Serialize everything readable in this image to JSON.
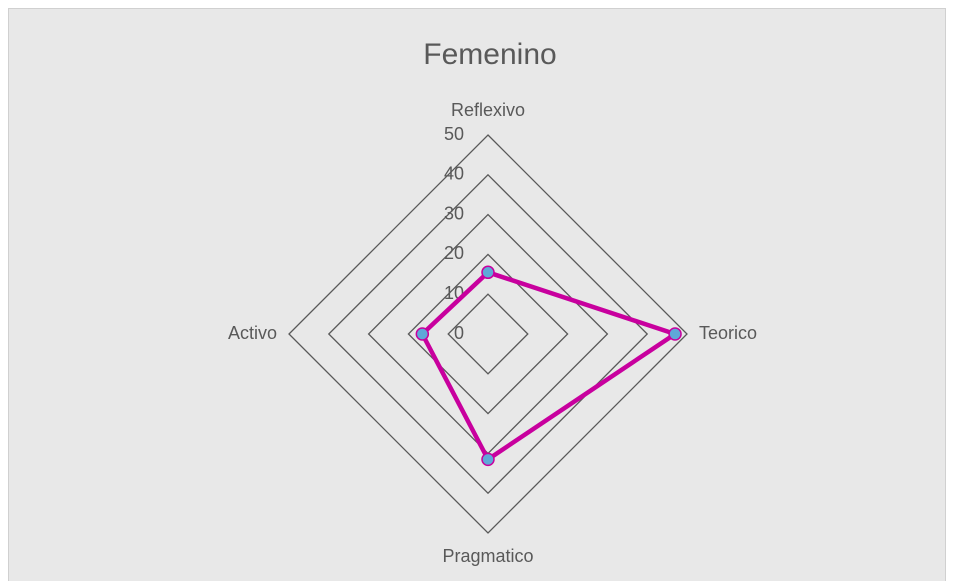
{
  "chart_data": {
    "type": "radar",
    "title": "Femenino",
    "categories": [
      "Reflexivo",
      "Teorico",
      "Pragmatico",
      "Activo"
    ],
    "series": [
      {
        "name": "Femenino",
        "color": "#c8009e",
        "marker_color": "#5fa8d8",
        "values": [
          15.5,
          47,
          31.5,
          16.5
        ]
      }
    ],
    "ylim": [
      0,
      50
    ],
    "yticks": [
      0,
      10,
      20,
      30,
      40,
      50
    ],
    "grid": true
  }
}
